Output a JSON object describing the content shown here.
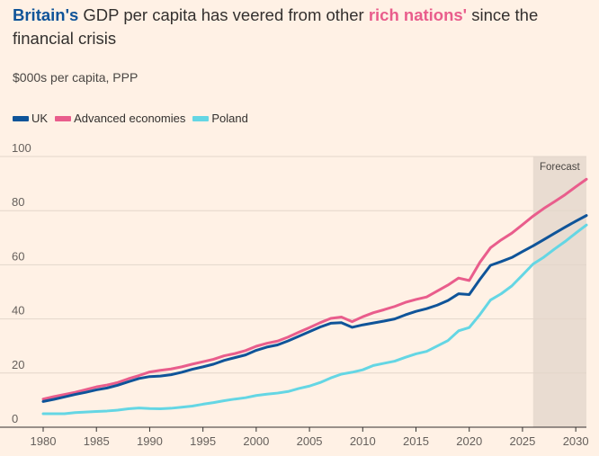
{
  "title": {
    "part1": "Britain's",
    "part2": " GDP per capita has veered from other ",
    "part3": "rich nations'",
    "part4": " since the financial crisis"
  },
  "subtitle": "$000s per capita, PPP",
  "colors": {
    "uk": "#0f5499",
    "advanced": "#e95d8c",
    "poland": "#64d6e4",
    "forecast_band": "#e9dcd1",
    "background": "#fff1e5"
  },
  "chart_data": {
    "type": "line",
    "title": "Britain's GDP per capita has veered from other rich nations' since the financial crisis",
    "ylabel": "$000s per capita, PPP",
    "xlabel": "",
    "xlim": [
      1980,
      2031
    ],
    "ylim": [
      0,
      100
    ],
    "yticks": [
      0,
      20,
      40,
      60,
      80,
      100
    ],
    "xticks": [
      1980,
      1985,
      1990,
      1995,
      2000,
      2005,
      2010,
      2015,
      2020,
      2025,
      2030
    ],
    "forecast": {
      "label": "Forecast",
      "start": 2026,
      "end": 2031
    },
    "grid": true,
    "legend": "top-left",
    "x": [
      1980,
      1981,
      1982,
      1983,
      1984,
      1985,
      1986,
      1987,
      1988,
      1989,
      1990,
      1991,
      1992,
      1993,
      1994,
      1995,
      1996,
      1997,
      1998,
      1999,
      2000,
      2001,
      2002,
      2003,
      2004,
      2005,
      2006,
      2007,
      2008,
      2009,
      2010,
      2011,
      2012,
      2013,
      2014,
      2015,
      2016,
      2017,
      2018,
      2019,
      2020,
      2021,
      2022,
      2023,
      2024,
      2025,
      2026,
      2027,
      2028,
      2029,
      2030,
      2031
    ],
    "series": [
      {
        "name": "UK",
        "key": "uk",
        "values": [
          9.5,
          10.3,
          11.2,
          12.1,
          12.9,
          13.8,
          14.5,
          15.5,
          16.8,
          18.0,
          18.7,
          18.9,
          19.4,
          20.3,
          21.4,
          22.3,
          23.3,
          24.7,
          25.7,
          26.7,
          28.4,
          29.6,
          30.4,
          31.9,
          33.6,
          35.3,
          37.0,
          38.4,
          38.6,
          36.9,
          37.8,
          38.5,
          39.2,
          40.0,
          41.5,
          42.8,
          43.8,
          45.1,
          46.8,
          49.3,
          49.0,
          54.6,
          59.8,
          61.2,
          62.7,
          64.9,
          67.0,
          69.3,
          71.6,
          73.9,
          76.1,
          78.2
        ]
      },
      {
        "name": "Advanced economies",
        "key": "advanced",
        "values": [
          10.4,
          11.3,
          12.1,
          12.9,
          13.9,
          14.9,
          15.6,
          16.5,
          17.9,
          19.1,
          20.4,
          21.0,
          21.5,
          22.3,
          23.3,
          24.2,
          25.1,
          26.4,
          27.2,
          28.3,
          29.9,
          31.0,
          31.8,
          33.3,
          35.1,
          36.8,
          38.6,
          40.2,
          40.7,
          39.0,
          40.8,
          42.3,
          43.4,
          44.6,
          46.1,
          47.2,
          48.1,
          50.3,
          52.5,
          55.1,
          54.2,
          60.9,
          66.3,
          69.2,
          71.7,
          74.8,
          78.0,
          80.8,
          83.3,
          85.9,
          88.8,
          91.6
        ]
      },
      {
        "name": "Poland",
        "key": "poland",
        "values": [
          5.0,
          5.0,
          5.0,
          5.4,
          5.6,
          5.8,
          6.0,
          6.3,
          6.8,
          7.1,
          6.9,
          6.8,
          7.0,
          7.4,
          7.8,
          8.5,
          9.1,
          9.8,
          10.4,
          10.9,
          11.7,
          12.2,
          12.6,
          13.2,
          14.3,
          15.2,
          16.5,
          18.2,
          19.6,
          20.3,
          21.2,
          22.8,
          23.6,
          24.4,
          25.8,
          27.1,
          28.0,
          30.0,
          32.0,
          35.6,
          36.8,
          41.6,
          47.0,
          49.3,
          52.2,
          56.2,
          60.3,
          62.8,
          65.8,
          68.6,
          71.7,
          74.7
        ]
      }
    ]
  }
}
